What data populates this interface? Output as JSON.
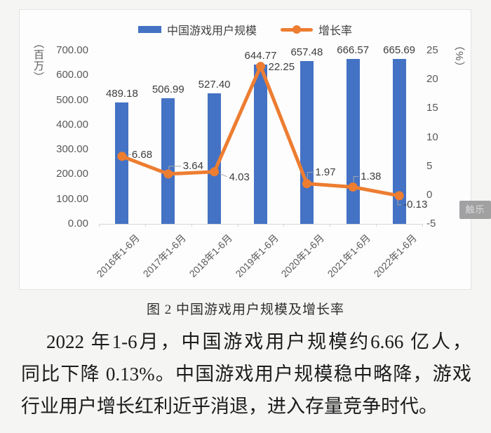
{
  "caption": "图 2 中国游戏用户规模及增长率",
  "paragraph": {
    "lines": [
      "2022 年1-6月，中国游戏用户规模约6.66 亿人，",
      "同比下降 0.13%。中国游戏用户规模稳中略降，游戏",
      "行业用户增长红利近乎消退，进入存量竞争时代。"
    ]
  },
  "watermark": "触乐",
  "colors": {
    "bar": "#4472C4",
    "line": "#ED7D31",
    "axis": "#d6d6d6",
    "tick_text": "#595959"
  },
  "chart_data": {
    "type": "bar+line",
    "title": "中国游戏用户规模及增长率",
    "categories": [
      "2016年1-6月",
      "2017年1-6月",
      "2018年1-6月",
      "2019年1-6月",
      "2020年1-6月",
      "2021年1-6月",
      "2022年1-6月"
    ],
    "series": [
      {
        "name": "中国游戏用户规模",
        "type": "bar",
        "axis": "left",
        "color": "#4472C4",
        "values": [
          489.18,
          506.99,
          527.4,
          644.77,
          657.48,
          666.57,
          665.69
        ]
      },
      {
        "name": "增长率",
        "type": "line",
        "axis": "right",
        "color": "#ED7D31",
        "values": [
          6.68,
          3.64,
          4.03,
          22.25,
          1.97,
          1.38,
          -0.13
        ]
      }
    ],
    "left_axis": {
      "unit": "（百万）",
      "lim": [
        0,
        700
      ],
      "tick_labels": [
        "0.00",
        "100.00",
        "200.00",
        "300.00",
        "400.00",
        "500.00",
        "600.00",
        "700.00"
      ]
    },
    "right_axis": {
      "unit": "（%）",
      "lim": [
        -5,
        25
      ],
      "tick_labels": [
        "-5",
        "0",
        "5",
        "10",
        "15",
        "20",
        "25"
      ]
    },
    "grid": false,
    "legend_position": "top",
    "data_labels": true
  }
}
